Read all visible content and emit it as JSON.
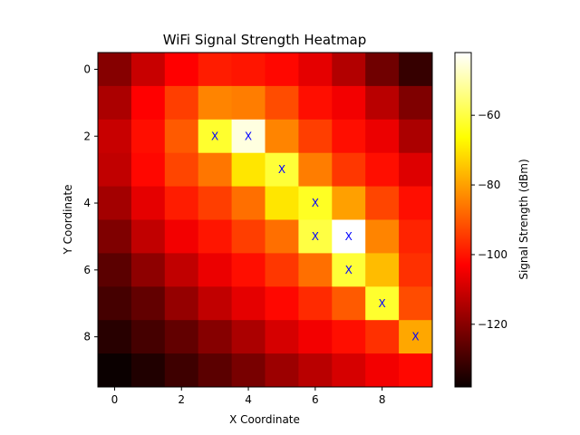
{
  "chart_data": {
    "type": "heatmap",
    "title": "WiFi Signal Strength Heatmap",
    "xlabel": "X Coordinate",
    "ylabel": "Y Coordinate",
    "x_ticks": [
      0,
      2,
      4,
      6,
      8
    ],
    "y_ticks": [
      0,
      2,
      4,
      6,
      8
    ],
    "colorbar": {
      "label": "Signal Strength (dBm)",
      "ticks": [
        -60,
        -80,
        -100,
        -120
      ],
      "range": [
        -138,
        -42
      ],
      "colormap": "hot"
    },
    "grid": false,
    "z": [
      [
        -121,
        -112,
        -104,
        -99,
        -100,
        -102,
        -108,
        -115,
        -124,
        -132
      ],
      [
        -116,
        -104,
        -94,
        -84,
        -85,
        -92,
        -101,
        -106,
        -114,
        -122
      ],
      [
        -112,
        -101,
        -90,
        -62,
        -45,
        -84,
        -94,
        -101,
        -107,
        -116
      ],
      [
        -113,
        -102,
        -93,
        -86,
        -70,
        -61,
        -85,
        -95,
        -101,
        -109
      ],
      [
        -117,
        -108,
        -99,
        -94,
        -87,
        -70,
        -63,
        -80,
        -93,
        -101
      ],
      [
        -122,
        -113,
        -106,
        -100,
        -94,
        -87,
        -60,
        -42,
        -84,
        -98
      ],
      [
        -127,
        -120,
        -113,
        -107,
        -101,
        -95,
        -87,
        -61,
        -76,
        -96
      ],
      [
        -130,
        -126,
        -119,
        -113,
        -108,
        -102,
        -97,
        -90,
        -62,
        -92
      ],
      [
        -134,
        -130,
        -126,
        -121,
        -116,
        -110,
        -106,
        -101,
        -96,
        -79
      ],
      [
        -138,
        -135,
        -131,
        -127,
        -123,
        -118,
        -114,
        -110,
        -106,
        -102
      ]
    ],
    "markers": [
      {
        "x": 3,
        "y": 2,
        "label": "X"
      },
      {
        "x": 4,
        "y": 2,
        "label": "X"
      },
      {
        "x": 5,
        "y": 3,
        "label": "X"
      },
      {
        "x": 6,
        "y": 4,
        "label": "X"
      },
      {
        "x": 6,
        "y": 5,
        "label": "X"
      },
      {
        "x": 7,
        "y": 5,
        "label": "X"
      },
      {
        "x": 7,
        "y": 6,
        "label": "X"
      },
      {
        "x": 8,
        "y": 7,
        "label": "X"
      },
      {
        "x": 9,
        "y": 8,
        "label": "X"
      }
    ]
  }
}
